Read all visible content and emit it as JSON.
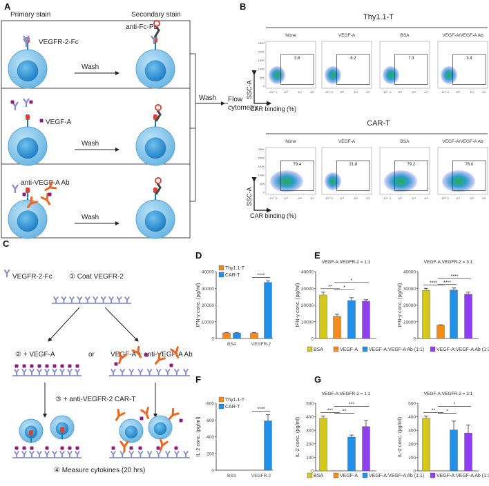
{
  "panels": {
    "a": "A",
    "b": "B",
    "c": "C",
    "d": "D",
    "e": "E",
    "f": "F",
    "g": "G"
  },
  "panel_a": {
    "primary_stain": "Primary stain",
    "secondary_stain": "Secondary stain",
    "vegfr2_fc": "VEGFR-2-Fc",
    "anti_fc_pe": "anti-Fc-PE",
    "vegf_a": "VEGF-A",
    "anti_vegf_a_ab": "anti-VEGF-A Ab",
    "wash": "Wash",
    "flow_line1": "Flow",
    "flow_line2": "cytometry"
  },
  "panel_b": {
    "groups": [
      {
        "title": "Thy1.1-T",
        "values": [
          "2.6",
          "6.2",
          "7.3",
          "3.4"
        ]
      },
      {
        "title": "CAR-T",
        "values": [
          "79.4",
          "21.8",
          "79.2",
          "78.0"
        ]
      }
    ],
    "conditions": [
      "None",
      "VEGF-A",
      "BSA",
      "VEGF-A/VEGF-A Ab"
    ],
    "y_axis": "SSC-A",
    "x_axis": "CAR binding (%)",
    "y_ticks": [
      "250K",
      "200K",
      "150K",
      "100K",
      "50K",
      "0"
    ],
    "x_ticks": [
      "-10³",
      "0",
      "10³",
      "10⁴",
      "10⁵"
    ]
  },
  "panel_c": {
    "vegfr2_fc": "VEGFR-2-Fc",
    "step1": "① Coat VEGFR-2",
    "step2": "② + VEGF-A",
    "or": "or",
    "step2b": "VEGF-A + anti-VEGF-A Ab",
    "step3": "③ + anti-VEGFR-2 CAR-T",
    "step4": "④ Measure cytokines (20 hrs)"
  },
  "colors": {
    "thy": "#f28c1a",
    "car": "#1f8fe8",
    "bsa": "#d4c81c",
    "vegfa": "#f28c1a",
    "ab11": "#1f8fe8",
    "ab13": "#8f3ff0"
  },
  "legend_e": [
    "BSA",
    "VEGF-A",
    "VEGF-A:VEGF-A Ab (1:1)",
    "VEGF-A:VEGF-A Ab (1:3)"
  ],
  "chart_data": [
    {
      "id": "D",
      "type": "bar",
      "ylabel": "IFN-γ conc. (pg/ml)",
      "ylim": [
        0,
        40000
      ],
      "yticks": [
        "0",
        "10000",
        "20000",
        "30000",
        "40000"
      ],
      "categories": [
        "BSA",
        "VEGFR-2"
      ],
      "legend": [
        "Thy1.1-T",
        "CAR-T"
      ],
      "series": [
        {
          "name": "Thy1.1-T",
          "values": [
            3300,
            3300
          ],
          "errors": [
            150,
            150
          ]
        },
        {
          "name": "CAR-T",
          "values": [
            3300,
            33500
          ],
          "errors": [
            150,
            1000
          ]
        }
      ],
      "significance": [
        {
          "label": "****",
          "from": "VEGFR-2 Thy1.1-T",
          "to": "VEGFR-2 CAR-T"
        }
      ]
    },
    {
      "id": "E1",
      "type": "bar",
      "title": "VEGF-A:VEGFR-2 = 1:1",
      "ylabel": "IFN-γ conc. (pg/ml)",
      "ylim": [
        0,
        40000
      ],
      "yticks": [
        "0",
        "10000",
        "20000",
        "30000",
        "40000"
      ],
      "categories": [
        "BSA",
        "VEGF-A",
        "VEGF-A:VEGF-A Ab (1:1)",
        "VEGF-A:VEGF-A Ab (1:3)"
      ],
      "values": [
        26000,
        13300,
        22700,
        22300
      ],
      "errors": [
        1700,
        1200,
        1700,
        900
      ],
      "significance": [
        {
          "label": "**",
          "from": 0,
          "to": 1
        },
        {
          "label": "*",
          "from": 1,
          "to": 2
        },
        {
          "label": "*",
          "from": 1,
          "to": 3
        }
      ]
    },
    {
      "id": "E2",
      "type": "bar",
      "title": "VEGF-A:VEGFR-2 = 3:1",
      "ylabel": "IFN-γ conc. (pg/ml)",
      "ylim": [
        0,
        40000
      ],
      "yticks": [
        "0",
        "10000",
        "20000",
        "30000",
        "40000"
      ],
      "categories": [
        "BSA",
        "VEGF-A",
        "VEGF-A:VEGF-A Ab (1:1)",
        "VEGF-A:VEGF-A Ab (1:3)"
      ],
      "values": [
        28700,
        8000,
        29000,
        26500
      ],
      "errors": [
        1300,
        200,
        1200,
        1200
      ],
      "significance": [
        {
          "label": "****",
          "from": 0,
          "to": 1
        },
        {
          "label": "****",
          "from": 1,
          "to": 2
        },
        {
          "label": "****",
          "from": 1,
          "to": 3
        }
      ]
    },
    {
      "id": "F",
      "type": "bar",
      "ylabel": "IL-2 conc. (pg/ml)",
      "ylim": [
        0,
        800
      ],
      "yticks": [
        "0",
        "200",
        "400",
        "600",
        "800"
      ],
      "categories": [
        "BSA",
        "VEGFR-2"
      ],
      "legend": [
        "Thy1.1-T",
        "CAR-T"
      ],
      "series": [
        {
          "name": "Thy1.1-T",
          "values": [
            0,
            0
          ],
          "errors": [
            0,
            0
          ]
        },
        {
          "name": "CAR-T",
          "values": [
            0,
            590
          ],
          "errors": [
            0,
            75
          ]
        }
      ],
      "significance": [
        {
          "label": "****",
          "from": "VEGFR-2 Thy1.1-T",
          "to": "VEGFR-2 CAR-T"
        }
      ]
    },
    {
      "id": "G1",
      "type": "bar",
      "title": "VEGF-A:VEGFR-2 = 1:1",
      "ylabel": "IL-2 conc. (pg/ml)",
      "ylim": [
        0,
        500
      ],
      "yticks": [
        "0",
        "100",
        "200",
        "300",
        "400",
        "500"
      ],
      "categories": [
        "BSA",
        "VEGF-A",
        "VEGF-A:VEGF-A Ab (1:1)",
        "VEGF-A:VEGF-A Ab (1:3)"
      ],
      "values": [
        390,
        0,
        250,
        328
      ],
      "errors": [
        15,
        0,
        15,
        45
      ],
      "significance": [
        {
          "label": "***",
          "from": 0,
          "to": 1
        },
        {
          "label": "**",
          "from": 1,
          "to": 2
        },
        {
          "label": "***",
          "from": 1,
          "to": 3
        }
      ]
    },
    {
      "id": "G2",
      "type": "bar",
      "title": "VEGF-A:VEGFR-2 = 3:1",
      "ylabel": "IL-2 conc. (pg/ml)",
      "ylim": [
        0,
        500
      ],
      "yticks": [
        "0",
        "100",
        "200",
        "300",
        "400",
        "500"
      ],
      "categories": [
        "BSA",
        "VEGF-A",
        "VEGF-A:VEGF-A Ab (1:1)",
        "VEGF-A:VEGF-A Ab (1:3)"
      ],
      "values": [
        390,
        0,
        303,
        280
      ],
      "errors": [
        15,
        0,
        65,
        60
      ],
      "significance": [
        {
          "label": "**",
          "from": 0,
          "to": 1
        },
        {
          "label": "*",
          "from": 1,
          "to": 2
        },
        {
          "label": "*",
          "from": 1,
          "to": 3
        }
      ]
    }
  ]
}
